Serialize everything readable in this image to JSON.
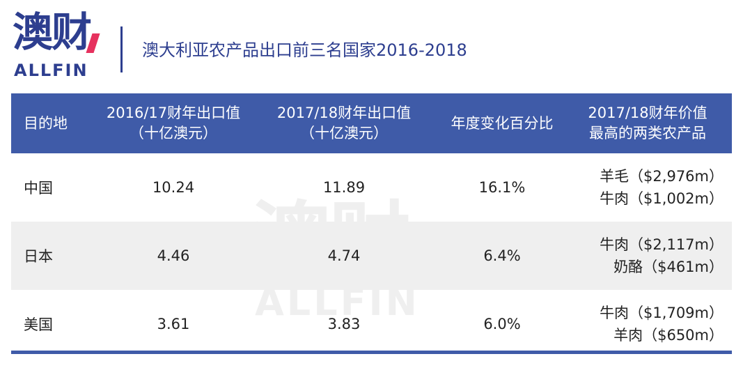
{
  "logo": {
    "cn": "澳财",
    "en": "ALLFIN"
  },
  "title": "澳大利亚农产品出口前三名国家2016-2018",
  "headers": {
    "country": "目的地",
    "fy1617_line1": "2016/17财年出口值",
    "fy1617_line2": "（十亿澳元）",
    "fy1718_line1": "2017/18财年出口值",
    "fy1718_line2": "（十亿澳元）",
    "change": "年度变化百分比",
    "top_line1": "2017/18财年价值",
    "top_line2": "最高的两类农产品"
  },
  "rows": [
    {
      "country": "中国",
      "fy1617": "10.24",
      "fy1718": "11.89",
      "change": "16.1%",
      "p1": "羊毛（$2,976m）",
      "p2": "牛肉（$1,002m）"
    },
    {
      "country": "日本",
      "fy1617": "4.46",
      "fy1718": "4.74",
      "change": "6.4%",
      "p1": "牛肉（$2,117m）",
      "p2": "奶酪（$461m）"
    },
    {
      "country": "美国",
      "fy1617": "3.61",
      "fy1718": "3.83",
      "change": "6.0%",
      "p1": "牛肉（$1,709m）",
      "p2": "羊肉（$650m）"
    }
  ],
  "watermark": {
    "cn": "澳财",
    "en": "ALLFIN"
  },
  "colors": {
    "brand": "#2d3e8f",
    "header_bg": "#3f5ba8",
    "accent": "#e6315e",
    "alt_row": "#efefef"
  }
}
